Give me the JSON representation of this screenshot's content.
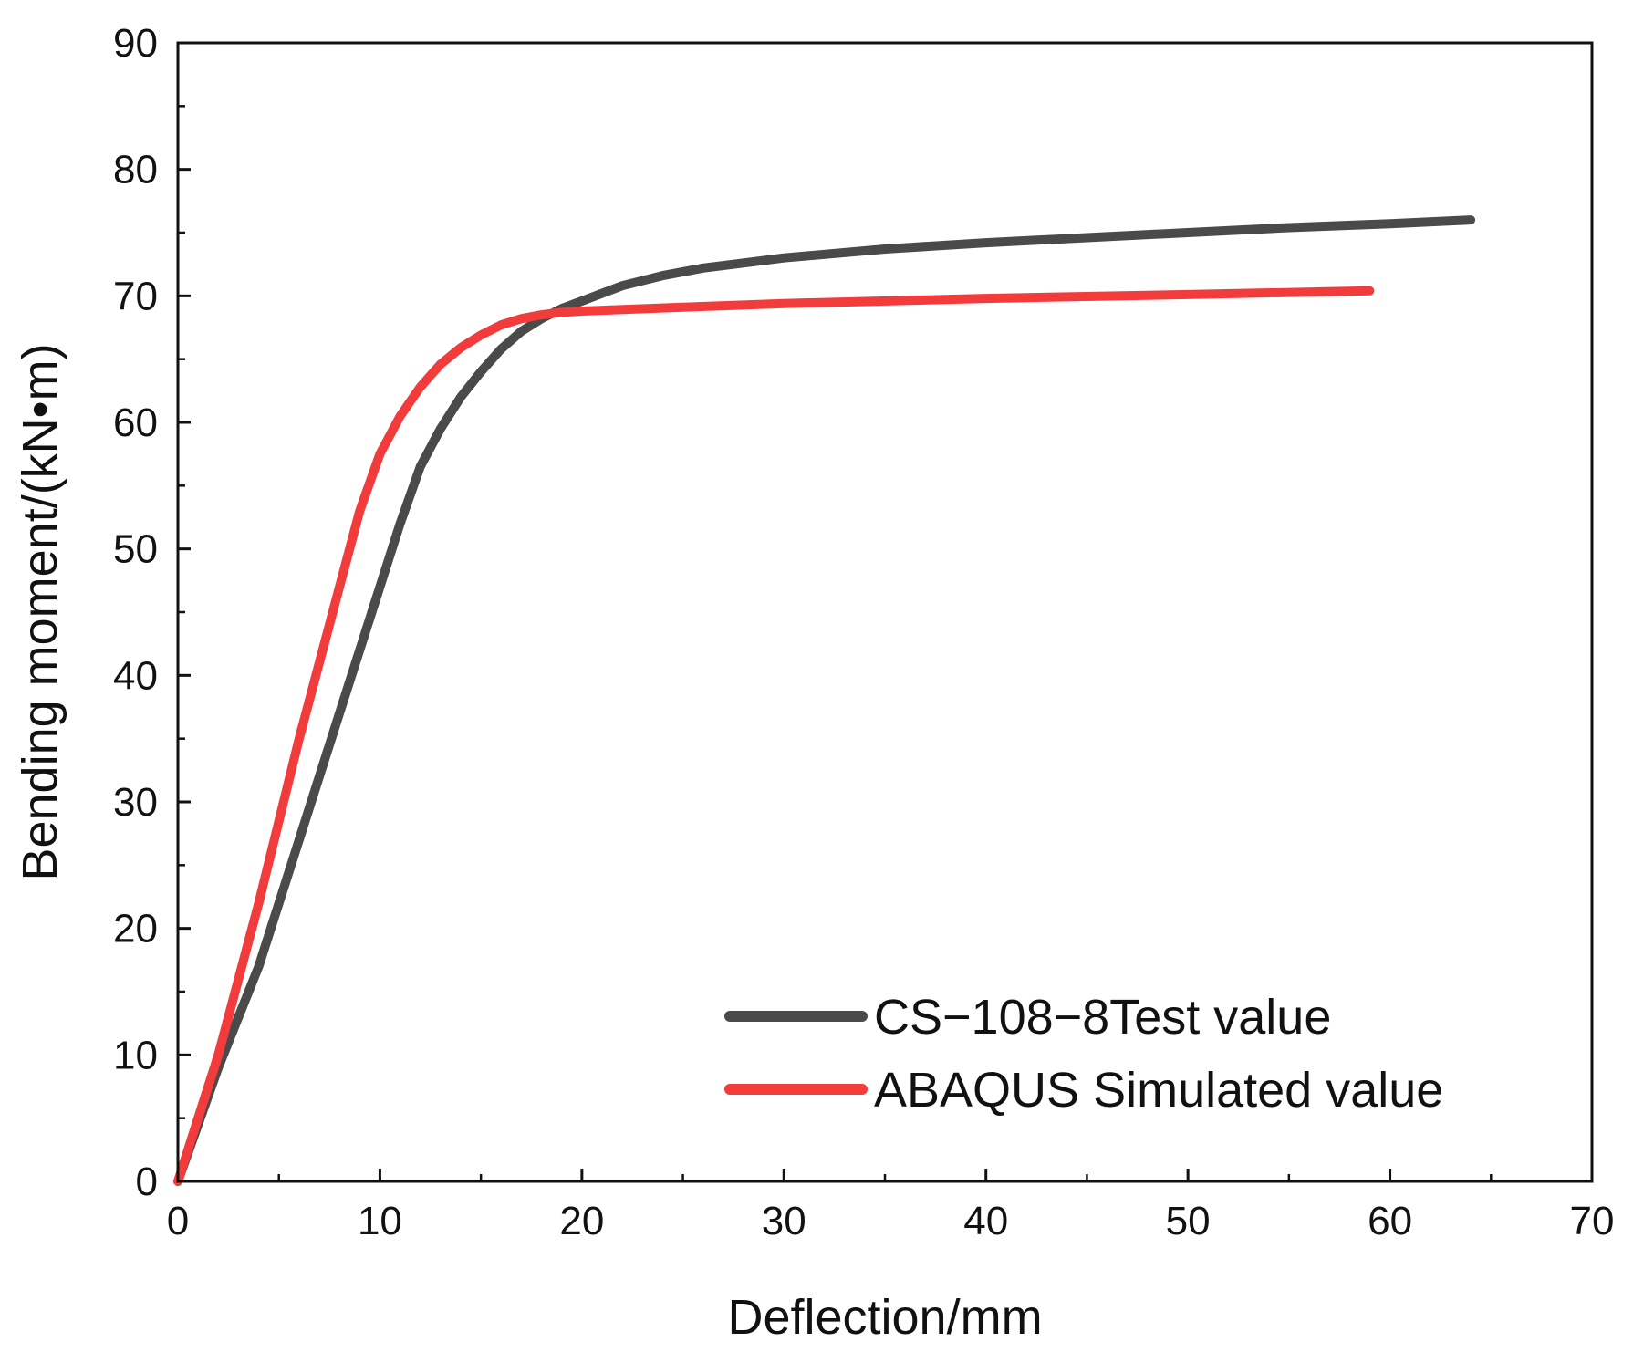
{
  "chart_data": {
    "type": "line",
    "title": "",
    "xlabel": "Deflection/mm",
    "ylabel": "Bending moment/(kN•m)",
    "xlim": [
      0,
      70
    ],
    "ylim": [
      0,
      90
    ],
    "xticks": [
      0,
      10,
      20,
      30,
      40,
      50,
      60,
      70
    ],
    "yticks": [
      0,
      10,
      20,
      30,
      40,
      50,
      60,
      70,
      80,
      90
    ],
    "xtick_labels": [
      "0",
      "10",
      "20",
      "30",
      "40",
      "50",
      "60",
      "70"
    ],
    "ytick_labels": [
      "0",
      "10",
      "20",
      "30",
      "40",
      "50",
      "60",
      "70",
      "80",
      "90"
    ],
    "grid": false,
    "legend_position": "bottom-right",
    "series": [
      {
        "name": "CS−108−8Test value",
        "color": "#4a4a4a",
        "x": [
          0,
          2,
          4,
          6,
          8,
          10,
          11,
          12,
          13,
          14,
          15,
          16,
          17,
          18,
          19,
          20,
          22,
          24,
          26,
          28,
          30,
          35,
          40,
          45,
          50,
          55,
          60,
          64
        ],
        "y": [
          0,
          9,
          17,
          27,
          37,
          47,
          52,
          56.5,
          59.5,
          62,
          64,
          65.8,
          67.2,
          68.2,
          69,
          69.6,
          70.8,
          71.6,
          72.2,
          72.6,
          73,
          73.7,
          74.2,
          74.6,
          75,
          75.4,
          75.7,
          76
        ]
      },
      {
        "name": "ABAQUS Simulated value",
        "color": "#f23c3c",
        "x": [
          0,
          2,
          4,
          6,
          8,
          9,
          10,
          11,
          12,
          13,
          14,
          15,
          16,
          17,
          18,
          19,
          20,
          25,
          30,
          40,
          50,
          59
        ],
        "y": [
          0,
          10,
          22,
          35,
          47,
          53,
          57.5,
          60.5,
          62.8,
          64.6,
          65.9,
          66.9,
          67.7,
          68.2,
          68.5,
          68.7,
          68.8,
          69.1,
          69.4,
          69.8,
          70.1,
          70.4
        ]
      }
    ]
  }
}
